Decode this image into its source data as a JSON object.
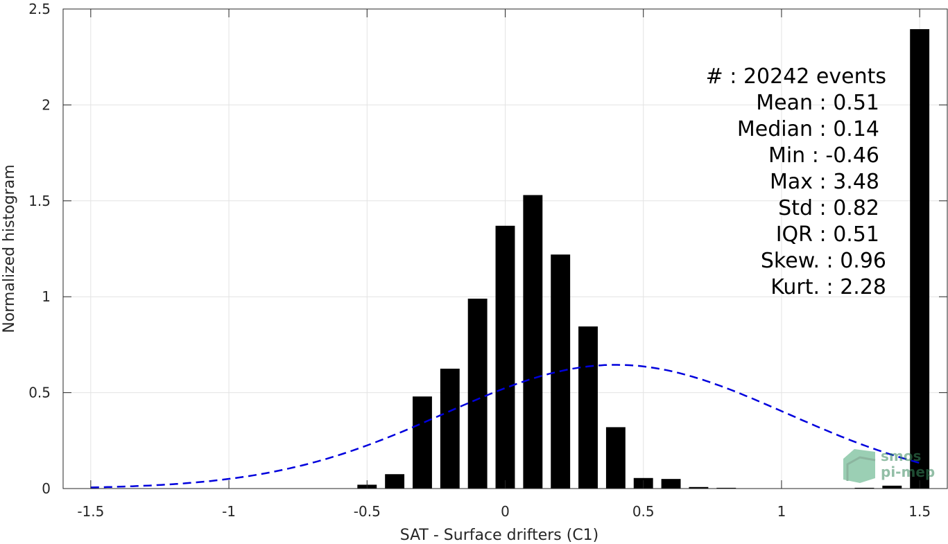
{
  "chart_data": {
    "type": "bar",
    "xlabel": "SAT - Surface drifters (C1)",
    "ylabel": "Normalized histogram",
    "xlim": [
      -1.6,
      1.6
    ],
    "ylim": [
      0,
      2.5
    ],
    "xticks": [
      -1.5,
      -1,
      -0.5,
      0,
      0.5,
      1,
      1.5
    ],
    "xtick_labels": [
      "-1.5",
      "-1",
      "-0.5",
      "0",
      "0.5",
      "1",
      "1.5"
    ],
    "yticks": [
      0,
      0.5,
      1,
      1.5,
      2,
      2.5
    ],
    "ytick_labels": [
      "0",
      "0.5",
      "1",
      "1.5",
      "2",
      "2.5"
    ],
    "grid": true,
    "bar_color": "#000000",
    "bar_width": 0.07,
    "bars": {
      "x": [
        -0.5,
        -0.4,
        -0.3,
        -0.2,
        -0.1,
        0.0,
        0.1,
        0.2,
        0.3,
        0.4,
        0.5,
        0.6,
        0.7,
        0.8,
        1.3,
        1.4,
        1.5
      ],
      "y": [
        0.02,
        0.075,
        0.48,
        0.625,
        0.99,
        1.37,
        1.53,
        1.22,
        0.845,
        0.32,
        0.055,
        0.05,
        0.008,
        0.004,
        0.004,
        0.015,
        2.395
      ]
    },
    "fit_curve": {
      "style": "dashed",
      "color": "#0000dd",
      "mean": 0.4,
      "std": 0.62,
      "peak": 0.645,
      "x_range": [
        -1.5,
        1.5
      ]
    },
    "stats": [
      {
        "label": "#  : 20242 events"
      },
      {
        "label": "Mean : 0.51"
      },
      {
        "label": "Median : 0.14"
      },
      {
        "label": "Min : -0.46"
      },
      {
        "label": "Max : 3.48"
      },
      {
        "label": "Std : 0.82"
      },
      {
        "label": "IQR : 0.51"
      },
      {
        "label": "Skew. : 0.96"
      },
      {
        "label": "Kurt. : 2.28"
      }
    ],
    "logo": {
      "line1": "smos",
      "line2": "pi-mep",
      "color": "#3a8a5e"
    }
  }
}
